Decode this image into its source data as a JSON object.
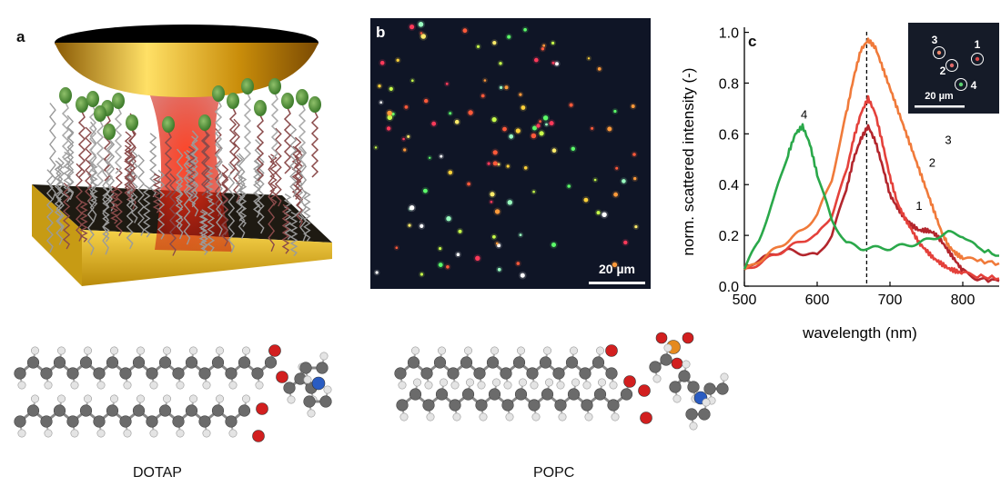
{
  "panels": {
    "a": {
      "letter": "a"
    },
    "b": {
      "letter": "b",
      "scalebar": "20 µm"
    },
    "c": {
      "letter": "c",
      "inset_scalebar": "20 µm",
      "inset_labels": [
        "1",
        "2",
        "3",
        "4"
      ]
    }
  },
  "molecules": {
    "left": "DOTAP",
    "right": "POPC"
  },
  "colors": {
    "curve1": "#b3262d",
    "curve2": "#e4413b",
    "curve3": "#f07a3a",
    "curve4": "#2aa84a",
    "gold": "#e7b817",
    "carbon": "#6b6b6b",
    "hydrogen": "#e4e4e4",
    "oxygen": "#d21f1f",
    "nitrogen": "#2a5cc2",
    "phosphorus": "#e58a1f"
  },
  "chart_data": {
    "type": "line",
    "xlabel": "wavelength (nm)",
    "ylabel": "norm. scattered intensity (-)",
    "xlim": [
      500,
      850
    ],
    "ylim": [
      0,
      1.02
    ],
    "xticks": [
      500,
      600,
      700,
      800
    ],
    "yticks": [
      0.0,
      0.2,
      0.4,
      0.6,
      0.8,
      1.0
    ],
    "vline": 668,
    "grid": false,
    "series": [
      {
        "name": "1",
        "color": "#b3262d",
        "x": [
          500,
          520,
          540,
          560,
          580,
          600,
          620,
          640,
          650,
          660,
          670,
          680,
          690,
          700,
          710,
          720,
          730,
          740,
          750,
          760,
          770,
          780,
          790,
          800,
          820,
          850
        ],
        "y": [
          0.08,
          0.1,
          0.13,
          0.14,
          0.13,
          0.12,
          0.2,
          0.38,
          0.5,
          0.58,
          0.63,
          0.57,
          0.47,
          0.36,
          0.31,
          0.27,
          0.24,
          0.22,
          0.22,
          0.21,
          0.18,
          0.14,
          0.1,
          0.06,
          0.03,
          0.02
        ]
      },
      {
        "name": "2",
        "color": "#e4413b",
        "x": [
          500,
          520,
          540,
          560,
          580,
          600,
          620,
          640,
          650,
          660,
          670,
          680,
          690,
          700,
          710,
          720,
          730,
          740,
          750,
          760,
          770,
          780,
          790,
          800,
          820,
          850
        ],
        "y": [
          0.06,
          0.09,
          0.12,
          0.15,
          0.18,
          0.2,
          0.28,
          0.45,
          0.58,
          0.68,
          0.74,
          0.68,
          0.56,
          0.43,
          0.33,
          0.27,
          0.22,
          0.17,
          0.14,
          0.11,
          0.09,
          0.07,
          0.06,
          0.05,
          0.04,
          0.03
        ]
      },
      {
        "name": "3",
        "color": "#f07a3a",
        "x": [
          500,
          520,
          540,
          560,
          580,
          600,
          620,
          640,
          650,
          660,
          670,
          680,
          690,
          700,
          710,
          720,
          730,
          740,
          750,
          760,
          770,
          780,
          790,
          800,
          820,
          850
        ],
        "y": [
          0.06,
          0.1,
          0.14,
          0.18,
          0.22,
          0.28,
          0.42,
          0.68,
          0.82,
          0.93,
          0.97,
          0.94,
          0.86,
          0.78,
          0.7,
          0.62,
          0.54,
          0.46,
          0.38,
          0.3,
          0.22,
          0.16,
          0.13,
          0.11,
          0.1,
          0.09
        ]
      },
      {
        "name": "4",
        "color": "#2aa84a",
        "x": [
          500,
          520,
          540,
          560,
          570,
          580,
          590,
          600,
          620,
          640,
          660,
          680,
          700,
          720,
          740,
          760,
          780,
          800,
          820,
          850
        ],
        "y": [
          0.07,
          0.18,
          0.34,
          0.52,
          0.6,
          0.63,
          0.56,
          0.44,
          0.26,
          0.17,
          0.15,
          0.15,
          0.15,
          0.16,
          0.17,
          0.19,
          0.21,
          0.2,
          0.15,
          0.12
        ]
      }
    ],
    "annotations": [
      {
        "text": "1",
        "x": 740,
        "y": 0.3
      },
      {
        "text": "2",
        "x": 758,
        "y": 0.47
      },
      {
        "text": "3",
        "x": 780,
        "y": 0.56
      },
      {
        "text": "4",
        "x": 582,
        "y": 0.66
      }
    ]
  }
}
